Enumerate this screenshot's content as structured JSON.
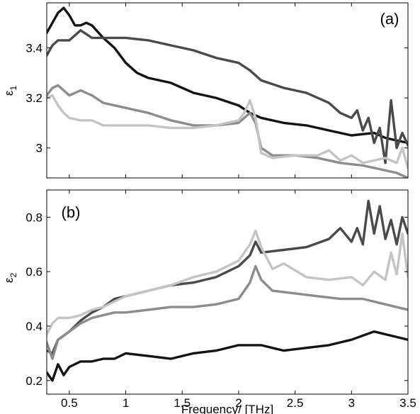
{
  "chart_data": [
    {
      "type": "line",
      "panel_label": "(a)",
      "ylabel": "ε",
      "ylabel_sub": "1",
      "xlim": [
        0.3,
        3.5
      ],
      "ylim": [
        2.88,
        3.58
      ],
      "xticks": [
        0.5,
        1,
        1.5,
        2,
        2.5,
        3,
        3.5
      ],
      "xtick_labels": [
        "",
        "",
        "",
        "",
        "",
        "",
        ""
      ],
      "yticks": [
        3.0,
        3.2,
        3.4
      ],
      "ytick_labels": [
        "3",
        "3.2",
        "3.4"
      ],
      "grid": false,
      "series": [
        {
          "color": "#141414",
          "x": [
            0.3,
            0.35,
            0.4,
            0.45,
            0.5,
            0.55,
            0.6,
            0.65,
            0.7,
            0.8,
            0.9,
            1.0,
            1.1,
            1.2,
            1.4,
            1.6,
            1.8,
            2.0,
            2.1,
            2.2,
            2.4,
            2.6,
            2.8,
            3.0,
            3.2,
            3.3,
            3.4,
            3.5
          ],
          "y": [
            3.46,
            3.5,
            3.54,
            3.56,
            3.53,
            3.49,
            3.49,
            3.5,
            3.49,
            3.44,
            3.4,
            3.34,
            3.3,
            3.28,
            3.26,
            3.22,
            3.2,
            3.17,
            3.14,
            3.12,
            3.1,
            3.09,
            3.07,
            3.05,
            3.06,
            3.04,
            3.03,
            3.02
          ]
        },
        {
          "color": "#4a4a4a",
          "x": [
            0.3,
            0.35,
            0.4,
            0.5,
            0.6,
            0.7,
            0.8,
            0.9,
            1.0,
            1.2,
            1.4,
            1.6,
            1.8,
            2.0,
            2.1,
            2.2,
            2.4,
            2.6,
            2.8,
            2.9,
            3.0,
            3.05,
            3.1,
            3.15,
            3.2,
            3.25,
            3.3,
            3.35,
            3.4,
            3.45,
            3.5
          ],
          "y": [
            3.37,
            3.41,
            3.43,
            3.43,
            3.47,
            3.44,
            3.44,
            3.44,
            3.44,
            3.43,
            3.41,
            3.39,
            3.36,
            3.34,
            3.31,
            3.27,
            3.24,
            3.22,
            3.18,
            3.14,
            3.12,
            3.15,
            3.07,
            3.12,
            3.02,
            3.08,
            2.94,
            3.19,
            3.0,
            3.06,
            3.01
          ]
        },
        {
          "color": "#8c8c8c",
          "x": [
            0.3,
            0.35,
            0.4,
            0.5,
            0.6,
            0.7,
            0.8,
            0.9,
            1.0,
            1.2,
            1.4,
            1.6,
            1.8,
            2.0,
            2.1,
            2.15,
            2.2,
            2.3,
            2.5,
            2.7,
            2.9,
            3.1,
            3.3,
            3.4,
            3.5
          ],
          "y": [
            3.21,
            3.24,
            3.25,
            3.21,
            3.23,
            3.21,
            3.18,
            3.17,
            3.16,
            3.14,
            3.11,
            3.09,
            3.09,
            3.1,
            3.14,
            3.1,
            3.0,
            2.97,
            2.97,
            2.96,
            2.94,
            2.93,
            2.91,
            2.9,
            2.88
          ]
        },
        {
          "color": "#c4c4c4",
          "x": [
            0.3,
            0.35,
            0.4,
            0.45,
            0.5,
            0.6,
            0.7,
            0.8,
            1.0,
            1.2,
            1.4,
            1.6,
            1.8,
            2.0,
            2.05,
            2.1,
            2.15,
            2.2,
            2.3,
            2.5,
            2.7,
            2.8,
            2.9,
            3.0,
            3.1,
            3.2,
            3.3,
            3.4,
            3.45,
            3.5
          ],
          "y": [
            3.2,
            3.21,
            3.17,
            3.14,
            3.12,
            3.11,
            3.11,
            3.09,
            3.09,
            3.09,
            3.08,
            3.08,
            3.09,
            3.11,
            3.14,
            3.19,
            3.12,
            2.98,
            2.96,
            2.97,
            2.97,
            2.99,
            2.95,
            2.97,
            2.94,
            2.95,
            2.96,
            2.94,
            3.0,
            2.92
          ]
        }
      ]
    },
    {
      "type": "line",
      "panel_label": "(b)",
      "ylabel": "ε",
      "ylabel_sub": "2",
      "xlabel": "Frequency/ [THz]",
      "xlim": [
        0.3,
        3.5
      ],
      "ylim": [
        0.15,
        0.9
      ],
      "xticks": [
        0.5,
        1,
        1.5,
        2,
        2.5,
        3,
        3.5
      ],
      "xtick_labels": [
        "0.5",
        "1",
        "1.5",
        "2",
        "2.5",
        "3",
        "3.5"
      ],
      "yticks": [
        0.2,
        0.4,
        0.6,
        0.8
      ],
      "ytick_labels": [
        "0.2",
        "0.4",
        "0.6",
        "0.8"
      ],
      "grid": false,
      "series": [
        {
          "color": "#141414",
          "x": [
            0.3,
            0.35,
            0.4,
            0.45,
            0.5,
            0.6,
            0.7,
            0.8,
            0.9,
            1.0,
            1.2,
            1.4,
            1.6,
            1.8,
            2.0,
            2.2,
            2.4,
            2.6,
            2.8,
            3.0,
            3.2,
            3.4,
            3.5
          ],
          "y": [
            0.23,
            0.2,
            0.26,
            0.22,
            0.25,
            0.27,
            0.27,
            0.28,
            0.28,
            0.3,
            0.29,
            0.28,
            0.3,
            0.31,
            0.33,
            0.33,
            0.31,
            0.32,
            0.33,
            0.35,
            0.38,
            0.36,
            0.35
          ]
        },
        {
          "color": "#4a4a4a",
          "x": [
            0.3,
            0.35,
            0.4,
            0.5,
            0.6,
            0.7,
            0.8,
            0.9,
            1.0,
            1.2,
            1.4,
            1.6,
            1.8,
            2.0,
            2.1,
            2.15,
            2.2,
            2.4,
            2.6,
            2.8,
            2.9,
            3.0,
            3.05,
            3.1,
            3.15,
            3.2,
            3.25,
            3.3,
            3.35,
            3.4,
            3.45,
            3.5
          ],
          "y": [
            0.31,
            0.3,
            0.35,
            0.38,
            0.42,
            0.45,
            0.47,
            0.5,
            0.51,
            0.53,
            0.55,
            0.56,
            0.58,
            0.62,
            0.66,
            0.71,
            0.67,
            0.68,
            0.69,
            0.72,
            0.76,
            0.71,
            0.76,
            0.7,
            0.86,
            0.74,
            0.84,
            0.72,
            0.79,
            0.7,
            0.8,
            0.74
          ]
        },
        {
          "color": "#8c8c8c",
          "x": [
            0.3,
            0.35,
            0.4,
            0.5,
            0.6,
            0.7,
            0.8,
            0.9,
            1.0,
            1.2,
            1.4,
            1.6,
            1.8,
            2.0,
            2.1,
            2.15,
            2.2,
            2.3,
            2.5,
            2.7,
            2.9,
            3.1,
            3.3,
            3.5
          ],
          "y": [
            0.34,
            0.28,
            0.35,
            0.38,
            0.41,
            0.43,
            0.44,
            0.45,
            0.45,
            0.46,
            0.47,
            0.47,
            0.48,
            0.5,
            0.56,
            0.62,
            0.57,
            0.53,
            0.52,
            0.51,
            0.5,
            0.5,
            0.48,
            0.46
          ]
        },
        {
          "color": "#c4c4c4",
          "x": [
            0.3,
            0.35,
            0.4,
            0.5,
            0.6,
            0.7,
            0.8,
            0.9,
            1.0,
            1.2,
            1.4,
            1.6,
            1.8,
            2.0,
            2.1,
            2.15,
            2.2,
            2.3,
            2.4,
            2.6,
            2.8,
            3.0,
            3.1,
            3.2,
            3.3,
            3.35,
            3.4,
            3.45,
            3.5
          ],
          "y": [
            0.37,
            0.41,
            0.43,
            0.43,
            0.44,
            0.46,
            0.47,
            0.49,
            0.51,
            0.53,
            0.55,
            0.58,
            0.6,
            0.64,
            0.7,
            0.75,
            0.69,
            0.61,
            0.63,
            0.58,
            0.57,
            0.58,
            0.55,
            0.6,
            0.57,
            0.67,
            0.59,
            0.74,
            0.58
          ]
        }
      ]
    }
  ]
}
